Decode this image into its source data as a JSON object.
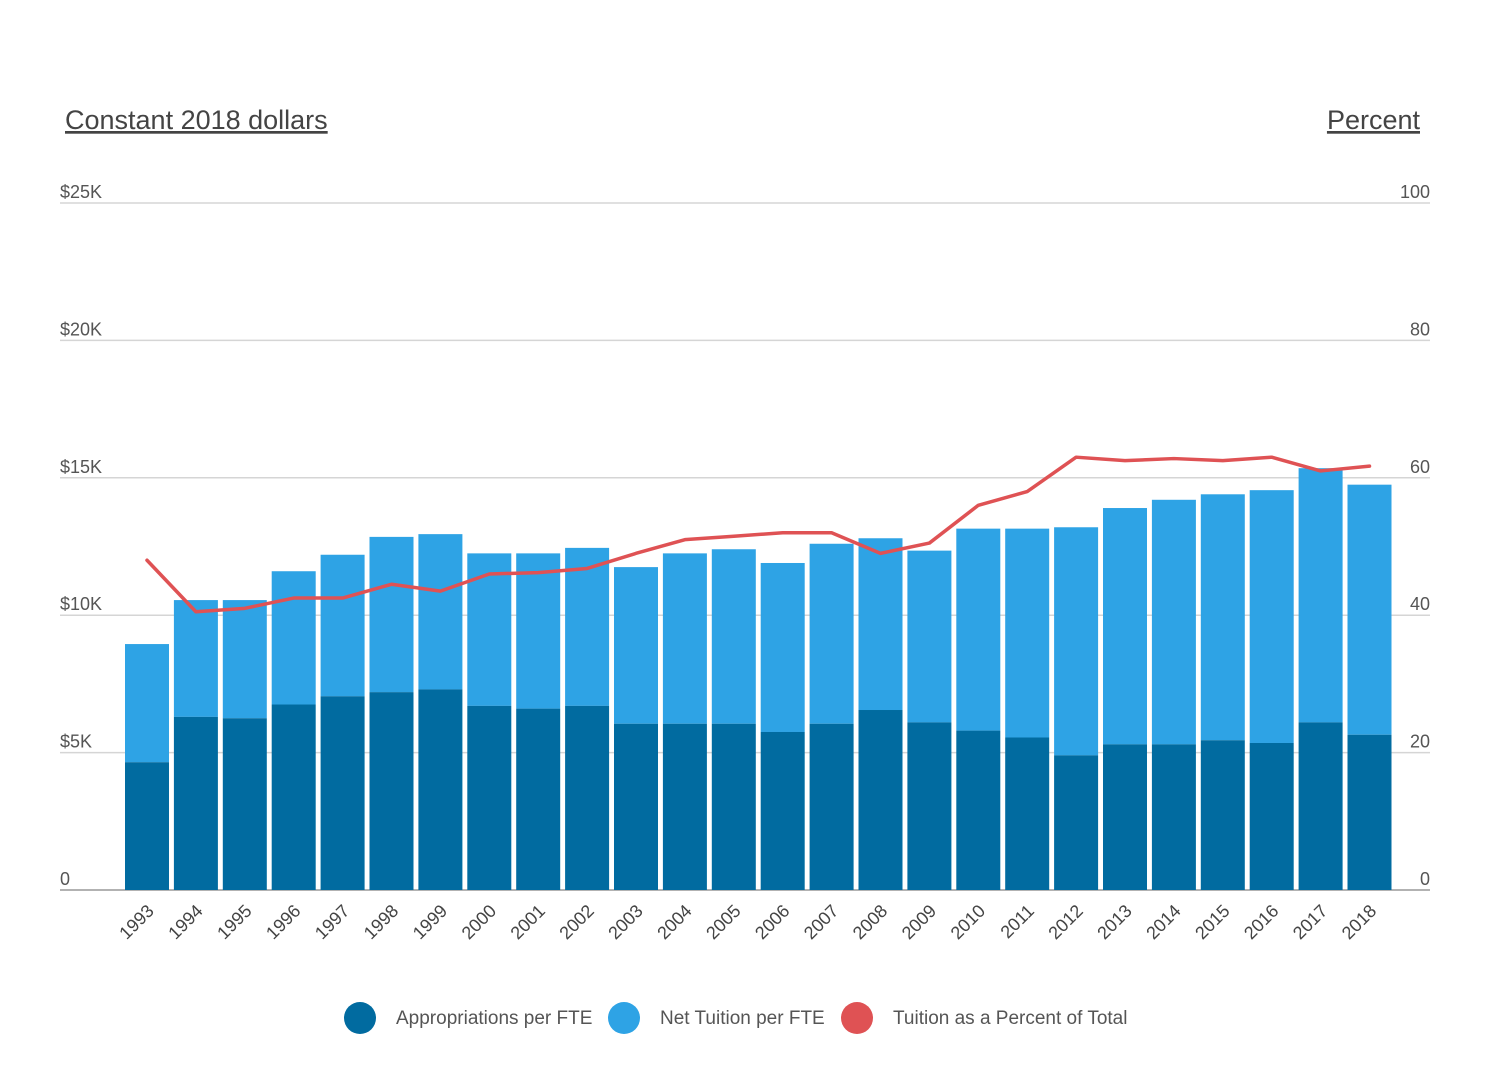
{
  "chart_data": {
    "type": "bar",
    "stacked": true,
    "left_axis_title": "Constant 2018 dollars",
    "right_axis_title": "Percent",
    "left_ticks": [
      "0",
      "$5K",
      "$10K",
      "$15K",
      "$20K",
      "$25K"
    ],
    "right_ticks": [
      "0",
      "20",
      "40",
      "60",
      "80",
      "100"
    ],
    "ylim_left": [
      0,
      25000
    ],
    "ylim_right": [
      0,
      100
    ],
    "grid": true,
    "legend_position": "bottom",
    "categories": [
      "1993",
      "1994",
      "1995",
      "1996",
      "1997",
      "1998",
      "1999",
      "2000",
      "2001",
      "2002",
      "2003",
      "2004",
      "2005",
      "2006",
      "2007",
      "2008",
      "2009",
      "2010",
      "2011",
      "2012",
      "2013",
      "2014",
      "2015",
      "2016",
      "2017",
      "2018"
    ],
    "series": [
      {
        "name": "Appropriations per FTE",
        "type": "bar",
        "axis": "left",
        "color": "#016ba0",
        "values": [
          4650,
          6300,
          6250,
          6750,
          7050,
          7200,
          7300,
          6700,
          6600,
          6700,
          6050,
          6050,
          6050,
          5750,
          6050,
          6550,
          6100,
          5800,
          5550,
          4900,
          5300,
          5300,
          5450,
          5350,
          6100,
          5650
        ]
      },
      {
        "name": "Net Tuition per FTE",
        "type": "bar",
        "axis": "left",
        "color": "#2ea3e5",
        "values": [
          4300,
          4250,
          4300,
          4850,
          5150,
          5650,
          5650,
          5550,
          5650,
          5750,
          5700,
          6200,
          6350,
          6150,
          6550,
          6250,
          6250,
          7350,
          7600,
          8300,
          8600,
          8900,
          8950,
          9200,
          9250,
          9100
        ]
      },
      {
        "name": "Tuition as a Percent of Total",
        "type": "line",
        "axis": "right",
        "color": "#df5254",
        "values": [
          48.0,
          40.5,
          41.0,
          42.5,
          42.5,
          44.5,
          43.5,
          46.0,
          46.2,
          46.8,
          49.0,
          51.0,
          51.5,
          52.0,
          52.0,
          49.0,
          50.5,
          56.0,
          58.0,
          63.0,
          62.5,
          62.8,
          62.5,
          63.0,
          61.0,
          61.7
        ]
      }
    ]
  }
}
